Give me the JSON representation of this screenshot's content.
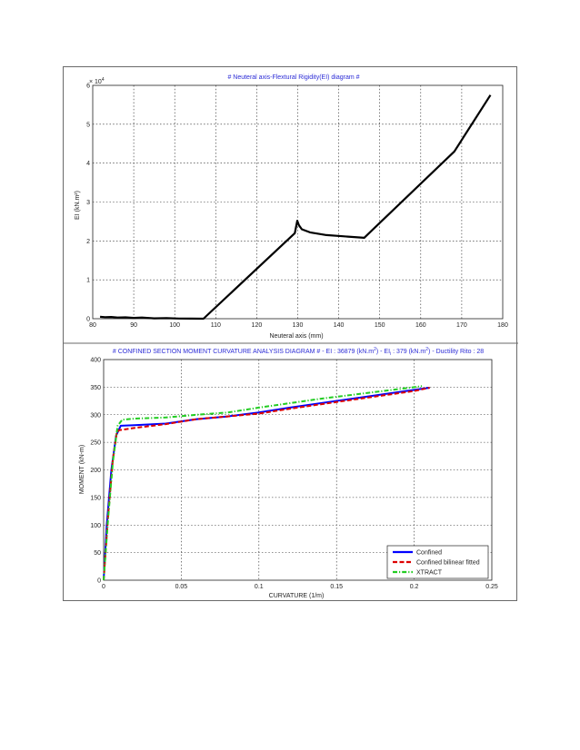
{
  "chart_data": [
    {
      "type": "line",
      "title": "# Neuteral axis-Flextural Rigidity(EI) diagram #",
      "xlabel": "Neuteral axis (mm)",
      "ylabel": "EI  (kN.m²)",
      "y_multiplier": "× 10",
      "y_exponent": "4",
      "xlim": [
        80,
        180
      ],
      "ylim": [
        0,
        6
      ],
      "xticks": [
        "80",
        "90",
        "100",
        "110",
        "120",
        "130",
        "140",
        "150",
        "160",
        "170",
        "180"
      ],
      "yticks": [
        "0",
        "1",
        "2",
        "3",
        "4",
        "5",
        "6"
      ],
      "grid": true,
      "series": [
        {
          "color": "#000000",
          "x": [
            81.8,
            83,
            84.5,
            86,
            88,
            90,
            92,
            95,
            98,
            101,
            104,
            107,
            129.3,
            129.9,
            130.3,
            131,
            133,
            137,
            141,
            146.2,
            168.2,
            177
          ],
          "y": [
            0.05,
            0.04,
            0.045,
            0.03,
            0.035,
            0.02,
            0.03,
            0.01,
            0.015,
            0.005,
            0.002,
            0.0,
            2.2,
            2.52,
            2.4,
            2.3,
            2.22,
            2.15,
            2.12,
            2.08,
            4.3,
            5.75
          ]
        }
      ]
    },
    {
      "type": "line",
      "title_main": "# CONFINED SECTION MOMENT CURVATURE ANALYSIS DIAGRAM # -  EI : 36879 (kN.m",
      "title_sup1": "2",
      "title_mid": ")  -  EI",
      "title_sub": "i",
      "title_mid2": " : 379 (kN.m",
      "title_sup2": "2",
      "title_end": ")  -  Ductility Rito : 28",
      "xlabel": "CURVATURE (1/m)",
      "ylabel": "MOMENT (kN-m)",
      "xlim": [
        0,
        0.25
      ],
      "ylim": [
        0,
        400
      ],
      "xticks": [
        "0",
        "0.05",
        "0.1",
        "0.15",
        "0.2",
        "0.25"
      ],
      "yticks": [
        "0",
        "50",
        "100",
        "150",
        "200",
        "250",
        "300",
        "350",
        "400"
      ],
      "grid": true,
      "legend_position": "bottom-right",
      "series": [
        {
          "name": "Confined",
          "color": "#0000ff",
          "dash": "solid",
          "x": [
            0,
            0.002,
            0.005,
            0.008,
            0.011,
            0.02,
            0.04,
            0.06,
            0.08,
            0.1,
            0.12,
            0.14,
            0.16,
            0.18,
            0.2,
            0.21
          ],
          "y": [
            0,
            100,
            200,
            262,
            280,
            281,
            284,
            292,
            297,
            304,
            313,
            321,
            329,
            337,
            345,
            349
          ]
        },
        {
          "name": "Confined bilinear fitted",
          "color": "#dd0000",
          "dash": "dashed",
          "x": [
            0,
            0.003,
            0.006,
            0.0085,
            0.01,
            0.02,
            0.04,
            0.06,
            0.08,
            0.1,
            0.12,
            0.14,
            0.16,
            0.18,
            0.2,
            0.21
          ],
          "y": [
            0,
            120,
            220,
            268,
            272,
            276,
            283,
            292,
            297,
            302,
            311,
            319,
            327,
            335,
            343,
            349
          ]
        },
        {
          "name": "XTRACT",
          "color": "#22cc22",
          "dash": "dashdot",
          "x": [
            0,
            0.003,
            0.006,
            0.009,
            0.012,
            0.02,
            0.04,
            0.06,
            0.08,
            0.1,
            0.12,
            0.14,
            0.16,
            0.18,
            0.2,
            0.205
          ],
          "y": [
            0,
            115,
            215,
            280,
            291,
            293,
            295,
            300,
            304,
            313,
            321,
            329,
            336,
            343,
            350,
            352
          ]
        }
      ]
    }
  ]
}
